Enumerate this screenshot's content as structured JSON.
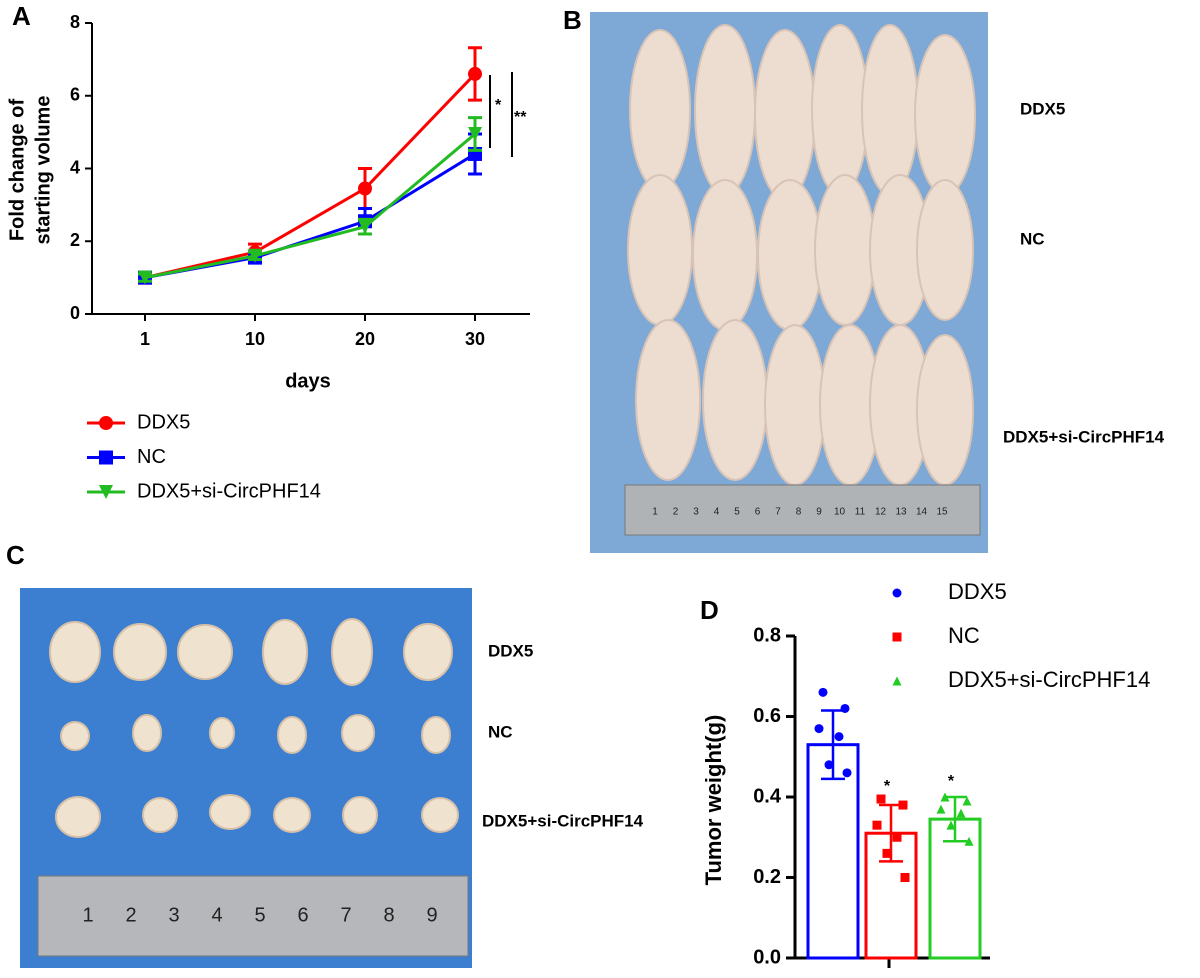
{
  "panel_labels": [
    "A",
    "B",
    "C",
    "D"
  ],
  "chart_data": [
    {
      "type": "line",
      "xlabel": "days",
      "ylabel": [
        "Fold change of",
        "starting volume"
      ],
      "categories": [
        "1",
        "10",
        "20",
        "30"
      ],
      "ylim": [
        0,
        8
      ],
      "yticks": [
        0,
        2,
        4,
        6,
        8
      ],
      "series": [
        {
          "name": "DDX5",
          "color": "#ff0000",
          "marker": "circle",
          "values": [
            1.0,
            1.7,
            3.45,
            6.6
          ],
          "errors": [
            0.15,
            0.22,
            0.55,
            0.72
          ]
        },
        {
          "name": "NC",
          "color": "#0000ff",
          "marker": "square",
          "values": [
            1.0,
            1.55,
            2.55,
            4.4
          ],
          "errors": [
            0.12,
            0.12,
            0.35,
            0.55
          ]
        },
        {
          "name": "DDX5+si-CircPHF14",
          "color": "#22bb22",
          "marker": "triangle-down",
          "values": [
            1.0,
            1.6,
            2.4,
            4.95
          ],
          "errors": [
            0.1,
            0.1,
            0.2,
            0.45
          ]
        }
      ],
      "annotations": [
        "*",
        "**"
      ]
    },
    {
      "type": "bar",
      "ylabel": "Tumor weight(g)",
      "ylim": [
        0,
        0.8
      ],
      "yticks": [
        {
          "value": 0,
          "label": "0.0"
        },
        0.2,
        0.4,
        0.6,
        0.8
      ],
      "series": [
        {
          "name": "DDX5",
          "color": "#0000ff",
          "marker": "circle",
          "values": [
            0.53
          ],
          "errors": [
            0.085
          ],
          "points": [
            0.66,
            0.62,
            0.57,
            0.55,
            0.48,
            0.46
          ]
        },
        {
          "name": "NC",
          "color": "#ff0000",
          "marker": "square",
          "values": [
            0.31
          ],
          "errors": [
            0.07
          ],
          "points": [
            0.395,
            0.38,
            0.33,
            0.3,
            0.26,
            0.2
          ]
        },
        {
          "name": "DDX5+si-CircPHF14",
          "color": "#22cc22",
          "marker": "triangle",
          "values": [
            0.345
          ],
          "errors": [
            0.055
          ],
          "points": [
            0.4,
            0.39,
            0.37,
            0.36,
            0.33,
            0.29
          ]
        }
      ],
      "annotations": [
        "*",
        "*"
      ]
    }
  ],
  "photo_b": {
    "row_labels": [
      "DDX5",
      "NC",
      "DDX5+si-CircPHF14"
    ],
    "ruler_numbers": [
      "1",
      "2",
      "3",
      "4",
      "5",
      "6",
      "7",
      "8",
      "9",
      "10",
      "11",
      "12",
      "13",
      "14",
      "15"
    ]
  },
  "photo_c": {
    "row_labels": [
      "DDX5",
      "NC",
      "DDX5+si-CircPHF14"
    ],
    "ruler_numbers": [
      "1",
      "2",
      "3",
      "4",
      "5",
      "6",
      "7",
      "8",
      "9"
    ]
  }
}
